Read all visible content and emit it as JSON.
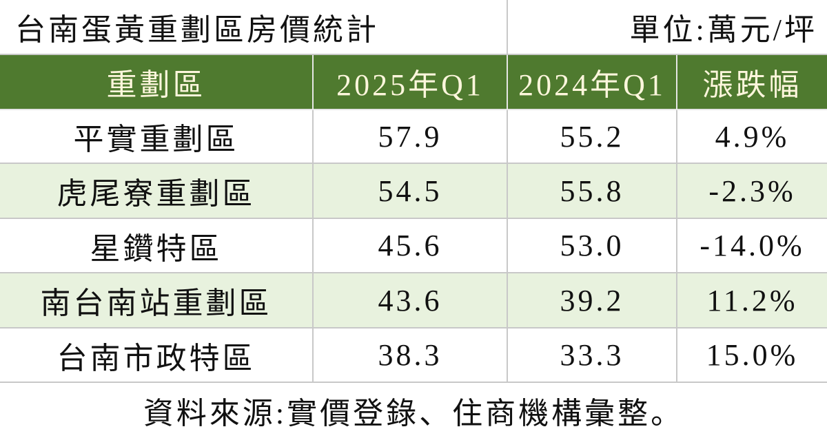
{
  "header": {
    "title": "台南蛋黃重劃區房價統計",
    "unit": "單位:萬元/坪"
  },
  "table": {
    "columns": [
      "重劃區",
      "2025年Q1",
      "2024年Q1",
      "漲跌幅"
    ],
    "rows": [
      [
        "平實重劃區",
        "57.9",
        "55.2",
        "4.9%"
      ],
      [
        "虎尾寮重劃區",
        "54.5",
        "55.8",
        "-2.3%"
      ],
      [
        "星鑽特區",
        "45.6",
        "53.0",
        "-14.0%"
      ],
      [
        "南台南站重劃區",
        "43.6",
        "39.2",
        "11.2%"
      ],
      [
        "台南市政特區",
        "38.3",
        "33.3",
        "15.0%"
      ]
    ]
  },
  "footer": {
    "source": "資料來源:實價登錄、住商機構彙整。"
  }
}
